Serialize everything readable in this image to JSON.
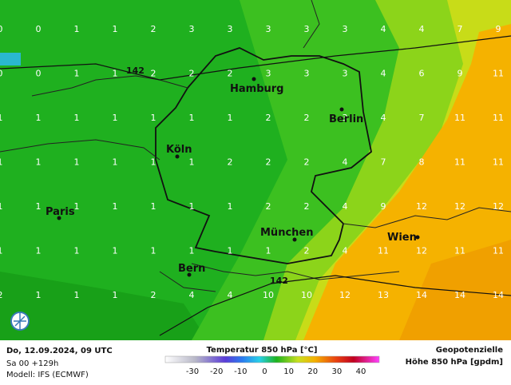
{
  "grid": {
    "rows": [
      [
        0,
        0,
        1,
        1,
        2,
        3,
        3,
        3,
        3,
        3,
        4,
        4,
        7,
        9
      ],
      [
        0,
        0,
        1,
        1,
        2,
        2,
        2,
        3,
        3,
        3,
        4,
        6,
        9,
        11
      ],
      [
        1,
        1,
        1,
        1,
        1,
        1,
        1,
        2,
        2,
        3,
        4,
        7,
        11,
        11
      ],
      [
        1,
        1,
        1,
        1,
        1,
        1,
        2,
        2,
        2,
        4,
        7,
        8,
        11,
        11
      ],
      [
        1,
        1,
        1,
        1,
        1,
        1,
        1,
        2,
        2,
        4,
        9,
        12,
        12,
        12
      ],
      [
        1,
        1,
        1,
        1,
        1,
        1,
        1,
        1,
        2,
        4,
        11,
        12,
        11,
        11
      ],
      [
        2,
        1,
        1,
        1,
        2,
        4,
        4,
        10,
        10,
        12,
        13,
        14,
        14,
        14
      ]
    ]
  },
  "cities": [
    "Hamburg",
    "Berlin",
    "Köln",
    "Paris",
    "München",
    "Wien",
    "Bern"
  ],
  "contour_labels": [
    "142",
    "142"
  ],
  "footer": {
    "datetime": "Do, 12.09.2024, 09 UTC",
    "run": "Sa 00 +129h",
    "model": "Modell: IFS (ECMWF)",
    "legend_title": "Temperatur 850 hPa [°C]",
    "legend_ticks": [
      -30,
      -20,
      -10,
      0,
      10,
      20,
      30,
      40
    ],
    "right_line1": "Geopotenzielle",
    "right_line2": "Höhe 850 hPa [gpdm]"
  }
}
